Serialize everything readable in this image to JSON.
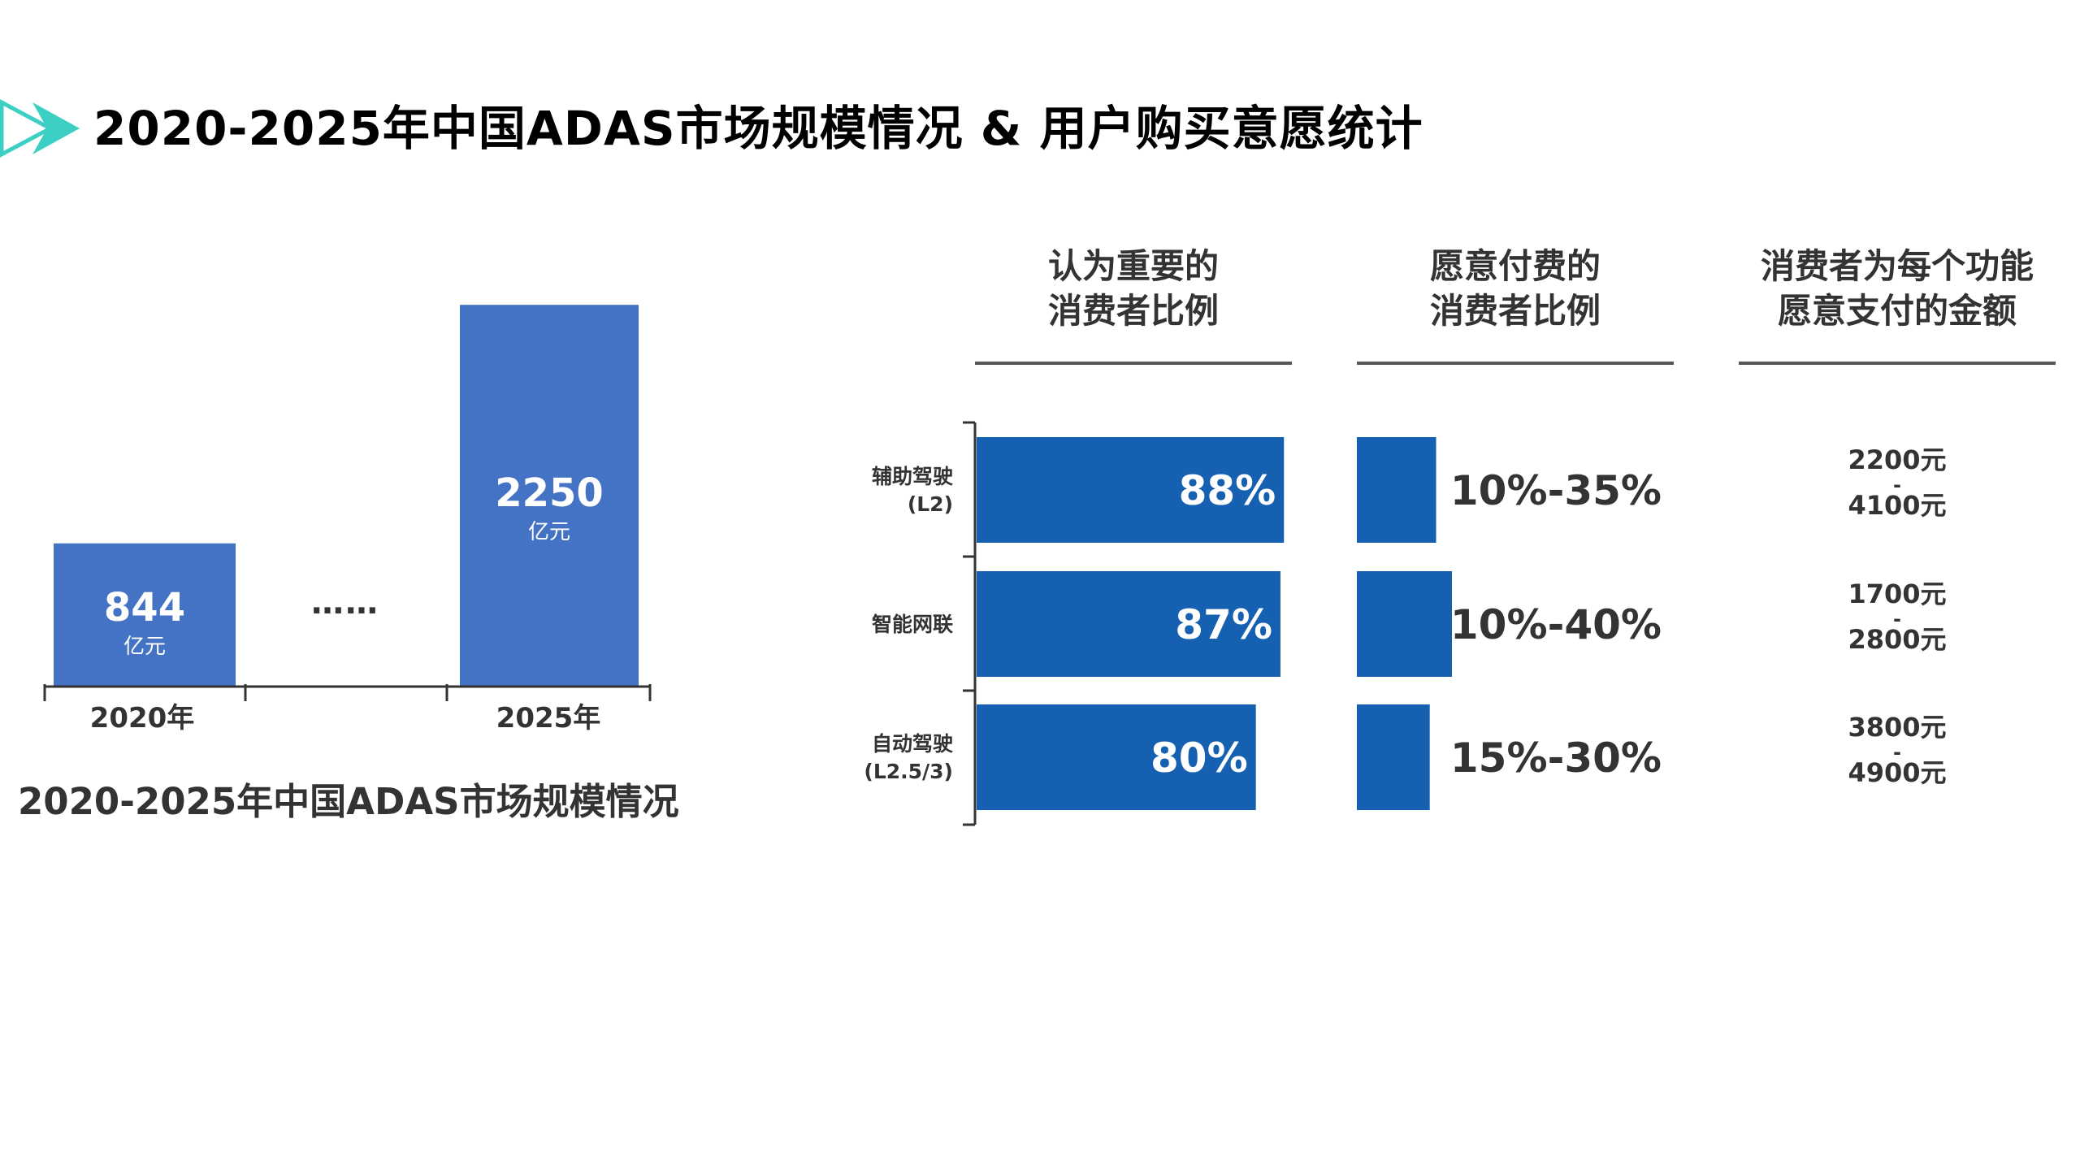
{
  "slide": {
    "title": "2020-2025年中国ADAS市场规模情况 & 用户购买意愿统计"
  },
  "colors": {
    "title_arrow": "#3cd0c4",
    "left_bar": "#4472c4",
    "right_bar": "#1660b2",
    "axis": "#333333",
    "header_rule": "#555555"
  },
  "chart_data": [
    {
      "type": "bar",
      "caption": "2020-2025年中国ADAS市场规模情况",
      "categories": [
        "2020年",
        "2025年"
      ],
      "values": [
        844,
        2250
      ],
      "value_labels": [
        "844",
        "2250"
      ],
      "unit_label": "亿元",
      "gap_label": "……",
      "ylim": [
        0,
        2500
      ],
      "grid": false
    },
    {
      "type": "bar",
      "orientation": "horizontal",
      "categories": [
        "辅助驾驶\n(L2)",
        "智能网联",
        "自动驾驶\n(L2.5/3)"
      ],
      "columns": [
        {
          "header": "认为重要的\n消费者比例",
          "kind": "bar",
          "values": [
            88,
            87,
            80
          ],
          "labels": [
            "88%",
            "87%",
            "80%"
          ],
          "xlim": [
            0,
            100
          ]
        },
        {
          "header": "愿意付费的\n消费者比例",
          "kind": "bar",
          "values": [
            25,
            30,
            23
          ],
          "labels": [
            "10%-35%",
            "10%-40%",
            "15%-30%"
          ]
        },
        {
          "header": "消费者为每个功能\n愿意支付的金额",
          "kind": "text",
          "low": [
            "2200元",
            "1700元",
            "3800元"
          ],
          "high": [
            "4100元",
            "2800元",
            "4900元"
          ],
          "separator": "-"
        }
      ],
      "grid": false
    }
  ]
}
